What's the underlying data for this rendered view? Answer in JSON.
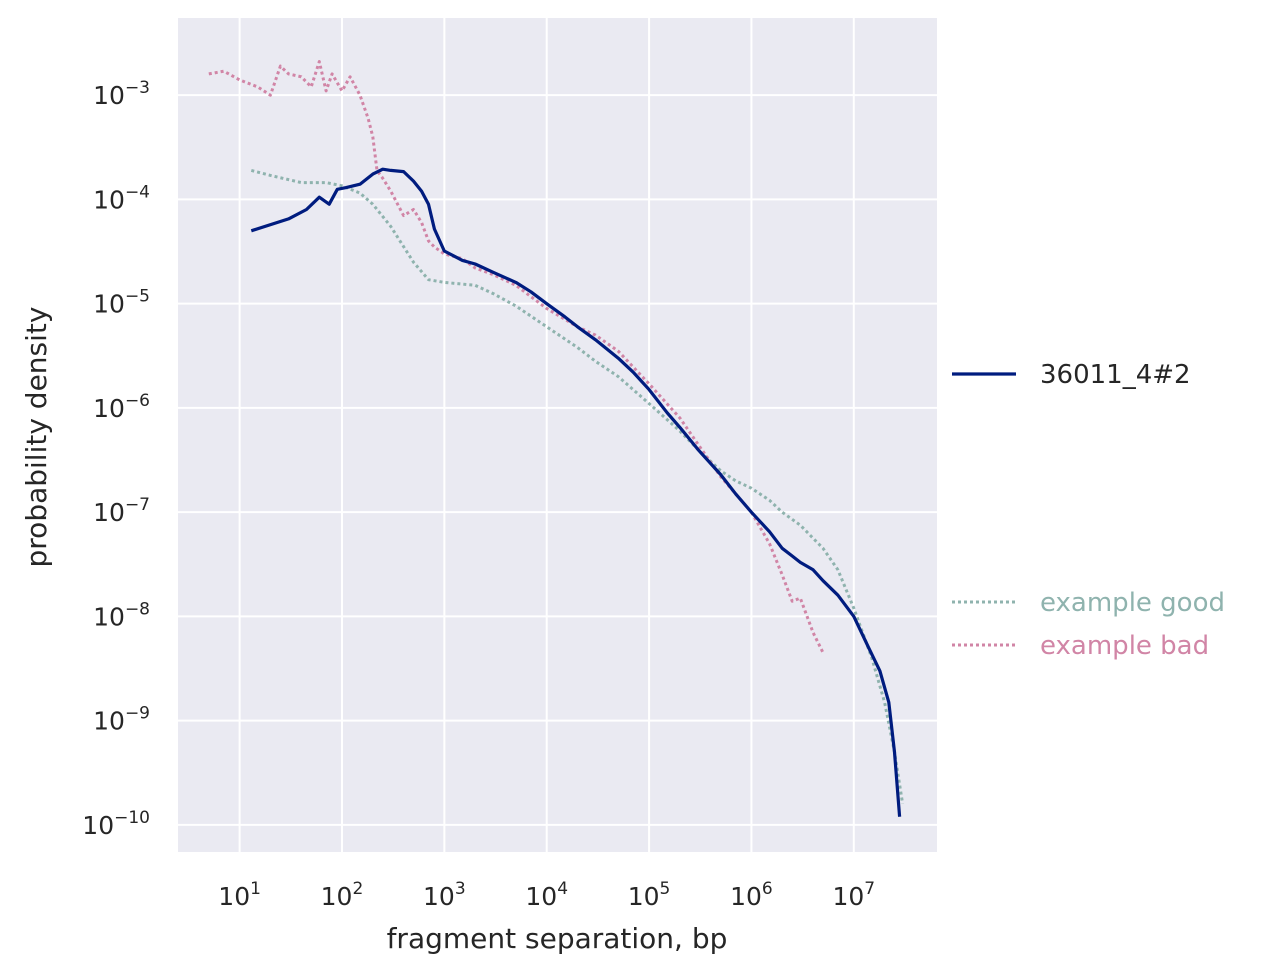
{
  "chart_data": {
    "type": "line",
    "title": "",
    "xlabel": "fragment separation, bp",
    "ylabel": "probability density",
    "xscale": "log",
    "yscale": "log",
    "xlim": [
      2.5,
      65000000.0
    ],
    "ylim": [
      5.5e-11,
      0.0055
    ],
    "grid": true,
    "legend_placement": "right-outside",
    "x_ticks": [
      {
        "value": 10,
        "base": "10",
        "exp": "1"
      },
      {
        "value": 100,
        "base": "10",
        "exp": "2"
      },
      {
        "value": 1000,
        "base": "10",
        "exp": "3"
      },
      {
        "value": 10000,
        "base": "10",
        "exp": "4"
      },
      {
        "value": 100000,
        "base": "10",
        "exp": "5"
      },
      {
        "value": 1000000,
        "base": "10",
        "exp": "6"
      },
      {
        "value": 10000000,
        "base": "10",
        "exp": "7"
      }
    ],
    "y_ticks": [
      {
        "value": 0.001,
        "base": "10",
        "exp": "−3"
      },
      {
        "value": 0.0001,
        "base": "10",
        "exp": "−4"
      },
      {
        "value": 1e-05,
        "base": "10",
        "exp": "−5"
      },
      {
        "value": 1e-06,
        "base": "10",
        "exp": "−6"
      },
      {
        "value": 1e-07,
        "base": "10",
        "exp": "−7"
      },
      {
        "value": 1e-08,
        "base": "10",
        "exp": "−8"
      },
      {
        "value": 1e-09,
        "base": "10",
        "exp": "−9"
      },
      {
        "value": 1e-10,
        "base": "10",
        "exp": "−10"
      }
    ],
    "series": [
      {
        "name": "36011_4#2",
        "color": "#001c7f",
        "style": "solid",
        "x": [
          13,
          30,
          45,
          60,
          75,
          90,
          110,
          150,
          200,
          250,
          300,
          400,
          500,
          600,
          700,
          800,
          1000,
          1500,
          2000,
          3000,
          5000,
          7000,
          10000,
          15000,
          20000,
          30000,
          50000,
          70000,
          100000,
          150000,
          200000,
          300000,
          500000,
          700000,
          1000000,
          1500000,
          2000000,
          2500000,
          3000000,
          4000000,
          5000000,
          7000000,
          10000000,
          14000000,
          18000000,
          22000000,
          25000000,
          28000000
        ],
        "y": [
          5e-05,
          6.5e-05,
          8e-05,
          0.000105,
          9e-05,
          0.000125,
          0.00013,
          0.00014,
          0.000175,
          0.000195,
          0.00019,
          0.000185,
          0.00015,
          0.00012,
          9e-05,
          5.2e-05,
          3.2e-05,
          2.6e-05,
          2.4e-05,
          2e-05,
          1.6e-05,
          1.3e-05,
          1e-05,
          7.5e-06,
          6e-06,
          4.5e-06,
          3e-06,
          2.2e-06,
          1.5e-06,
          9e-07,
          6.5e-07,
          4e-07,
          2.3e-07,
          1.5e-07,
          1e-07,
          6.5e-08,
          4.5e-08,
          3.8e-08,
          3.3e-08,
          2.8e-08,
          2.2e-08,
          1.6e-08,
          1e-08,
          5e-09,
          3e-09,
          1.5e-09,
          5e-10,
          1.2e-10
        ]
      },
      {
        "name": "example good",
        "color": "#8fb3ae",
        "style": "dotted",
        "x": [
          13,
          20,
          40,
          70,
          100,
          150,
          200,
          300,
          500,
          700,
          1000,
          2000,
          3000,
          5000,
          10000,
          20000,
          30000,
          50000,
          100000,
          200000,
          300000,
          500000,
          700000,
          1000000,
          1500000,
          2000000,
          3000000,
          5000000,
          7000000,
          10000000,
          15000000,
          20000000,
          25000000,
          30000000
        ],
        "y": [
          0.00019,
          0.00017,
          0.000145,
          0.000145,
          0.000135,
          0.000115,
          9e-05,
          5.5e-05,
          2.5e-05,
          1.7e-05,
          1.6e-05,
          1.5e-05,
          1.25e-05,
          9.5e-06,
          6e-06,
          3.8e-06,
          2.8e-06,
          2e-06,
          1.1e-06,
          6e-07,
          4e-07,
          2.5e-07,
          2e-07,
          1.7e-07,
          1.3e-07,
          1e-07,
          7.5e-08,
          4.5e-08,
          2.8e-08,
          1.2e-08,
          4e-09,
          1.5e-09,
          5e-10,
          1.6e-10
        ]
      },
      {
        "name": "example bad",
        "color": "#d185a6",
        "style": "dotted",
        "x": [
          5,
          7,
          10,
          15,
          20,
          25,
          30,
          40,
          50,
          60,
          70,
          80,
          100,
          120,
          150,
          180,
          200,
          220,
          250,
          300,
          400,
          500,
          600,
          700,
          800,
          1000,
          1500,
          2000,
          3000,
          5000,
          10000,
          20000,
          30000,
          50000,
          100000,
          200000,
          300000,
          500000,
          700000,
          1000000,
          1500000,
          2000000,
          2500000,
          3000000,
          4000000,
          5000000
        ],
        "y": [
          0.0016,
          0.0017,
          0.0014,
          0.0012,
          0.001,
          0.0019,
          0.0016,
          0.0015,
          0.0012,
          0.0021,
          0.0011,
          0.0016,
          0.0011,
          0.0015,
          0.001,
          0.0006,
          0.0004,
          0.00019,
          0.00016,
          0.00012,
          7e-05,
          8e-05,
          6e-05,
          4e-05,
          3.5e-05,
          3e-05,
          2.7e-05,
          2.2e-05,
          1.9e-05,
          1.5e-05,
          9e-06,
          6e-06,
          5e-06,
          3.5e-06,
          1.7e-06,
          8e-07,
          4.5e-07,
          2.2e-07,
          1.5e-07,
          1e-07,
          5e-08,
          2.5e-08,
          1.4e-08,
          1.5e-08,
          7e-09,
          4.5e-09
        ]
      }
    ]
  }
}
